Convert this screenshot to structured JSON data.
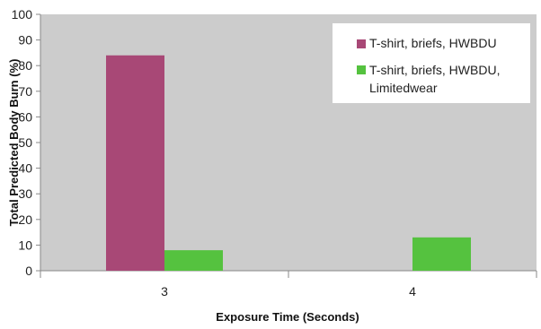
{
  "chart_data": {
    "type": "bar",
    "title": "",
    "xlabel": "Exposure Time (Seconds)",
    "ylabel": "Total Predicted Body Burn (%)",
    "ylim": [
      0,
      100
    ],
    "yticks": [
      "0",
      "10",
      "20",
      "30",
      "40",
      "50",
      "60",
      "70",
      "80",
      "90",
      "100"
    ],
    "categories": [
      "3",
      "4"
    ],
    "series": [
      {
        "name": "T-shirt, briefs, HWBDU",
        "values": [
          84,
          0
        ],
        "color": "#a84876"
      },
      {
        "name_lines": [
          "T-shirt, briefs, HWBDU,",
          "Limitedwear"
        ],
        "values": [
          8,
          13
        ],
        "color": "#55c23f"
      }
    ],
    "grid": false,
    "legend_position": "top-right",
    "plot_background": "#cccccc"
  }
}
